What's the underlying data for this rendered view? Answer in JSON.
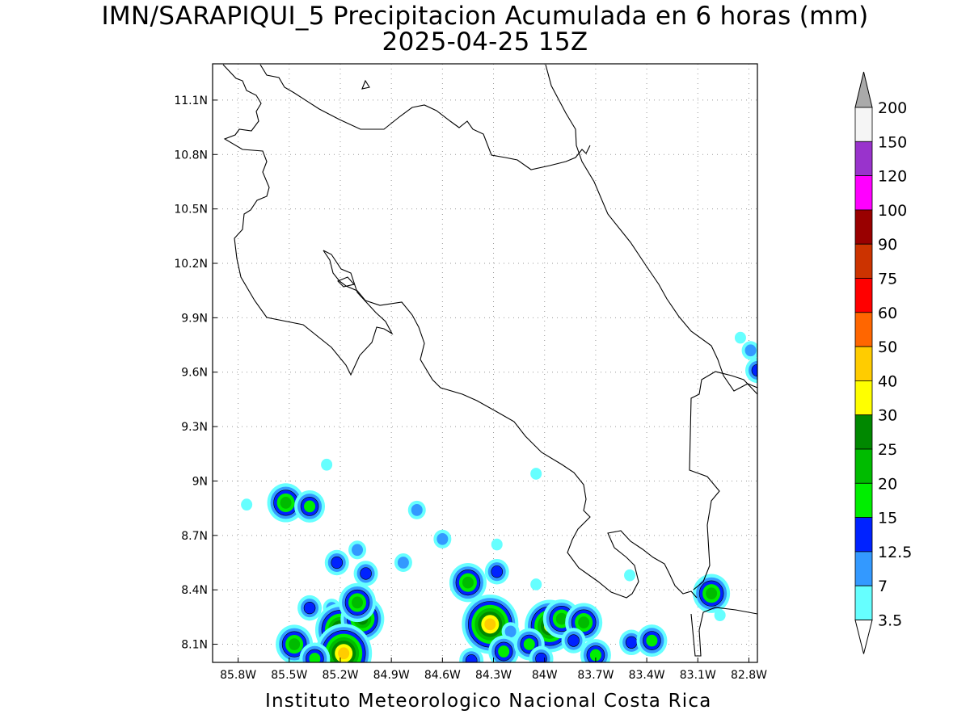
{
  "title": {
    "line1": "IMN/SARAPIQUI_5 Precipitacion Acumulada en 6 horas (mm)",
    "line2": "2025-04-25 15Z"
  },
  "footer": "Instituto Meteorologico Nacional Costa Rica",
  "map": {
    "lon_range": [
      -85.95,
      -82.75
    ],
    "lat_range": [
      8.0,
      11.3
    ],
    "lon_ticks": [
      {
        "value": -85.8,
        "label": "85.8W"
      },
      {
        "value": -85.5,
        "label": "85.5W"
      },
      {
        "value": -85.2,
        "label": "85.2W"
      },
      {
        "value": -84.9,
        "label": "84.9W"
      },
      {
        "value": -84.6,
        "label": "84.6W"
      },
      {
        "value": -84.3,
        "label": "84.3W"
      },
      {
        "value": -84.0,
        "label": "84W"
      },
      {
        "value": -83.7,
        "label": "83.7W"
      },
      {
        "value": -83.4,
        "label": "83.4W"
      },
      {
        "value": -83.1,
        "label": "83.1W"
      },
      {
        "value": -82.8,
        "label": "82.8W"
      }
    ],
    "lat_ticks": [
      {
        "value": 11.1,
        "label": "11.1N"
      },
      {
        "value": 10.8,
        "label": "10.8N"
      },
      {
        "value": 10.5,
        "label": "10.5N"
      },
      {
        "value": 10.2,
        "label": "10.2N"
      },
      {
        "value": 9.9,
        "label": "9.9N"
      },
      {
        "value": 9.6,
        "label": "9.6N"
      },
      {
        "value": 9.3,
        "label": "9.3N"
      },
      {
        "value": 9.0,
        "label": "9N"
      },
      {
        "value": 8.7,
        "label": "8.7N"
      },
      {
        "value": 8.4,
        "label": "8.4N"
      },
      {
        "value": 8.1,
        "label": "8.1N"
      }
    ],
    "grid": true
  },
  "legend": {
    "colors": [
      "#66ffff",
      "#3399ff",
      "#0022ff",
      "#00ee00",
      "#00bb00",
      "#008800",
      "#ffff00",
      "#ffcc00",
      "#ff6600",
      "#ff0000",
      "#cc3300",
      "#990000",
      "#ff00ff",
      "#9933cc",
      "#f5f5f5"
    ],
    "labels": [
      "3.5",
      "7",
      "12.5",
      "15",
      "20",
      "25",
      "30",
      "40",
      "50",
      "60",
      "75",
      "90",
      "100",
      "120",
      "150",
      "200"
    ],
    "over_color": "#aaaaaa"
  },
  "precip_cells": [
    {
      "lon": -85.52,
      "lat": 8.88,
      "mm": 20
    },
    {
      "lon": -85.38,
      "lat": 8.86,
      "mm": 15
    },
    {
      "lon": -85.28,
      "lat": 9.09,
      "mm": 3.5
    },
    {
      "lon": -85.75,
      "lat": 8.87,
      "mm": 3.5
    },
    {
      "lon": -84.75,
      "lat": 8.84,
      "mm": 7
    },
    {
      "lon": -84.6,
      "lat": 8.68,
      "mm": 7
    },
    {
      "lon": -85.22,
      "lat": 8.55,
      "mm": 12.5
    },
    {
      "lon": -85.1,
      "lat": 8.62,
      "mm": 7
    },
    {
      "lon": -85.05,
      "lat": 8.49,
      "mm": 12.5
    },
    {
      "lon": -84.83,
      "lat": 8.55,
      "mm": 7
    },
    {
      "lon": -85.25,
      "lat": 8.3,
      "mm": 7
    },
    {
      "lon": -85.2,
      "lat": 8.18,
      "mm": 30
    },
    {
      "lon": -85.07,
      "lat": 8.24,
      "mm": 25
    },
    {
      "lon": -85.1,
      "lat": 8.33,
      "mm": 20
    },
    {
      "lon": -85.47,
      "lat": 8.1,
      "mm": 20
    },
    {
      "lon": -85.38,
      "lat": 8.3,
      "mm": 12.5
    },
    {
      "lon": -85.18,
      "lat": 8.05,
      "mm": 40
    },
    {
      "lon": -85.35,
      "lat": 8.02,
      "mm": 15
    },
    {
      "lon": -84.45,
      "lat": 8.44,
      "mm": 20
    },
    {
      "lon": -84.28,
      "lat": 8.5,
      "mm": 12.5
    },
    {
      "lon": -84.28,
      "lat": 8.65,
      "mm": 3.5
    },
    {
      "lon": -84.32,
      "lat": 8.21,
      "mm": 40
    },
    {
      "lon": -84.2,
      "lat": 8.17,
      "mm": 7
    },
    {
      "lon": -84.24,
      "lat": 8.06,
      "mm": 15
    },
    {
      "lon": -84.43,
      "lat": 8.01,
      "mm": 12.5
    },
    {
      "lon": -84.05,
      "lat": 8.43,
      "mm": 3.5
    },
    {
      "lon": -83.97,
      "lat": 8.2,
      "mm": 30
    },
    {
      "lon": -83.9,
      "lat": 8.24,
      "mm": 20
    },
    {
      "lon": -83.77,
      "lat": 8.22,
      "mm": 20
    },
    {
      "lon": -83.83,
      "lat": 8.12,
      "mm": 12.5
    },
    {
      "lon": -83.7,
      "lat": 8.04,
      "mm": 15
    },
    {
      "lon": -84.09,
      "lat": 8.1,
      "mm": 15
    },
    {
      "lon": -84.02,
      "lat": 8.02,
      "mm": 12.5
    },
    {
      "lon": -83.49,
      "lat": 8.11,
      "mm": 12.5
    },
    {
      "lon": -83.37,
      "lat": 8.12,
      "mm": 15
    },
    {
      "lon": -83.5,
      "lat": 8.48,
      "mm": 3.5
    },
    {
      "lon": -83.02,
      "lat": 8.38,
      "mm": 20
    },
    {
      "lon": -82.97,
      "lat": 8.26,
      "mm": 3.5
    },
    {
      "lon": -84.05,
      "lat": 9.04,
      "mm": 3.5
    },
    {
      "lon": -82.85,
      "lat": 9.79,
      "mm": 3.5
    },
    {
      "lon": -82.79,
      "lat": 9.72,
      "mm": 7
    },
    {
      "lon": -82.75,
      "lat": 9.61,
      "mm": 12.5
    }
  ]
}
